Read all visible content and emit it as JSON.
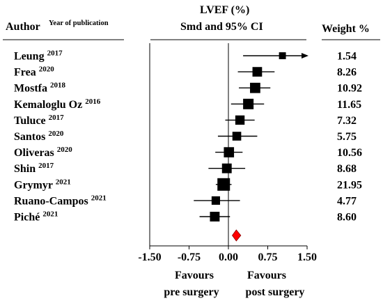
{
  "header": {
    "author_label": "Author",
    "year_label": "Year of publication",
    "title": "LVEF (%)",
    "subtitle": "Smd and 95% CI",
    "weight_label": "Weight %"
  },
  "chart_data": {
    "type": "forest",
    "title": "LVEF (%)",
    "subtitle": "Smd and 95% CI",
    "xlim": [
      -1.5,
      1.5
    ],
    "xticks": [
      "-1.50",
      "-0.75",
      "0.00",
      "0.75",
      "1.50"
    ],
    "xtick_values": [
      -1.5,
      -0.75,
      0,
      0.75,
      1.5
    ],
    "left_label_line1": "Favours",
    "left_label_line2": "pre surgery",
    "right_label_line1": "Favours",
    "right_label_line2": "post surgery",
    "studies": [
      {
        "author": "Leung",
        "year": "2017",
        "smd": 1.03,
        "lower": 0.28,
        "upper": 1.5,
        "arrow_right": true,
        "weight": "1.54"
      },
      {
        "author": "Frea",
        "year": "2020",
        "smd": 0.55,
        "lower": 0.18,
        "upper": 0.88,
        "weight": "8.26"
      },
      {
        "author": "Mostfa",
        "year": "2018",
        "smd": 0.51,
        "lower": 0.2,
        "upper": 0.8,
        "weight": "10.92"
      },
      {
        "author": "Kemaloglu Oz",
        "year": "2016",
        "smd": 0.38,
        "lower": 0.05,
        "upper": 0.68,
        "weight": "11.65"
      },
      {
        "author": "Tuluce",
        "year": "2017",
        "smd": 0.22,
        "lower": -0.06,
        "upper": 0.5,
        "weight": "7.32"
      },
      {
        "author": "Santos",
        "year": "2020",
        "smd": 0.16,
        "lower": -0.2,
        "upper": 0.55,
        "weight": "5.75"
      },
      {
        "author": "Oliveras",
        "year": "2020",
        "smd": 0.01,
        "lower": -0.25,
        "upper": 0.27,
        "weight": "10.56"
      },
      {
        "author": "Shin",
        "year": "2017",
        "smd": -0.03,
        "lower": -0.38,
        "upper": 0.32,
        "weight": "8.68"
      },
      {
        "author": "Grymyr",
        "year": "2021",
        "smd": -0.09,
        "lower": -0.24,
        "upper": 0.06,
        "weight": "21.95"
      },
      {
        "author": "Ruano-Campos",
        "year": "2021",
        "smd": -0.24,
        "lower": -0.66,
        "upper": 0.22,
        "weight": "4.77"
      },
      {
        "author": "Piché",
        "year": "2021",
        "smd": -0.26,
        "lower": -0.55,
        "upper": 0.03,
        "weight": "8.60"
      }
    ],
    "pooled": {
      "smd": 0.15,
      "lower": 0.1,
      "upper": 0.21
    },
    "pooled_color": "#ff0000",
    "marker_color": "#000000"
  }
}
